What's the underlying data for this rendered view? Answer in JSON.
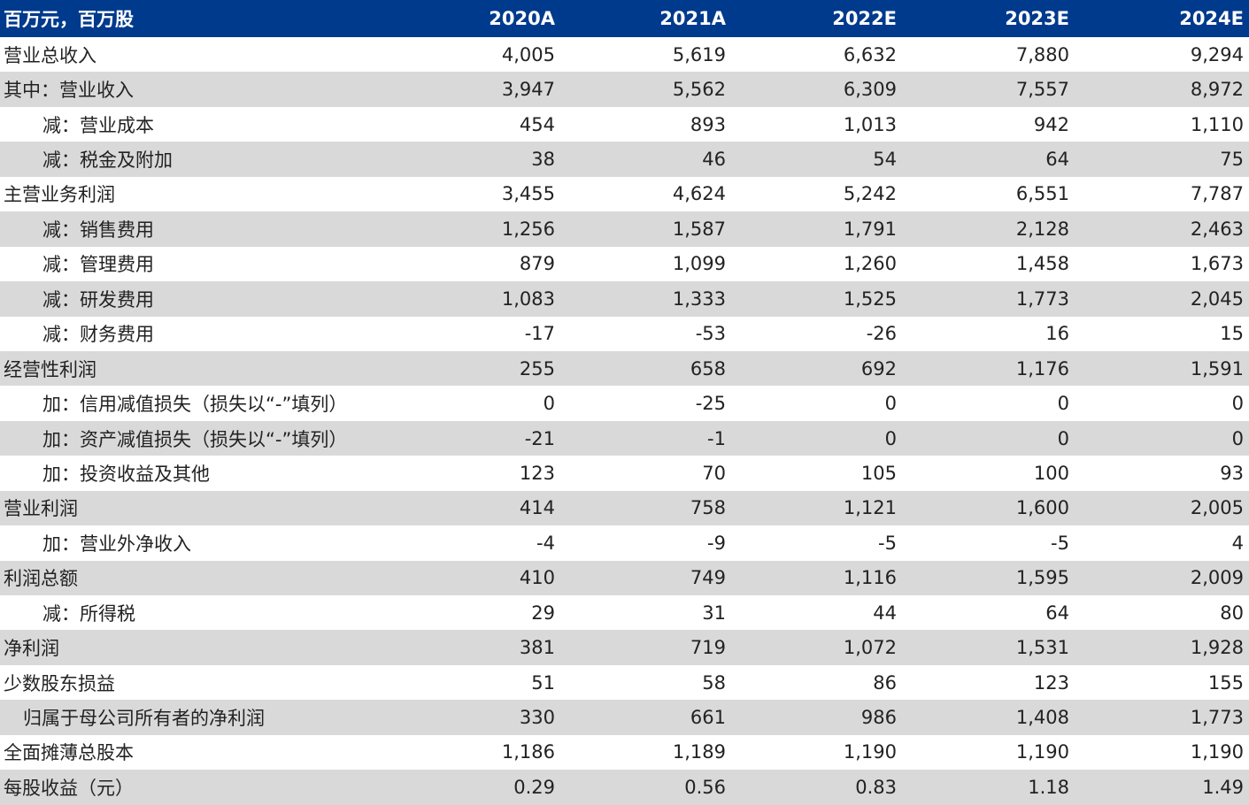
{
  "header": {
    "label": "百万元，百万股",
    "years": [
      "2020A",
      "2021A",
      "2022E",
      "2023E",
      "2024E"
    ]
  },
  "rows": [
    {
      "label": "营业总收入",
      "indent": 0,
      "values": [
        "4,005",
        "5,619",
        "6,632",
        "7,880",
        "9,294"
      ]
    },
    {
      "label": "其中：营业收入",
      "indent": 0,
      "values": [
        "3,947",
        "5,562",
        "6,309",
        "7,557",
        "8,972"
      ]
    },
    {
      "label": "减：营业成本",
      "indent": 1,
      "values": [
        "454",
        "893",
        "1,013",
        "942",
        "1,110"
      ]
    },
    {
      "label": "减：税金及附加",
      "indent": 1,
      "values": [
        "38",
        "46",
        "54",
        "64",
        "75"
      ]
    },
    {
      "label": "主营业务利润",
      "indent": 0,
      "values": [
        "3,455",
        "4,624",
        "5,242",
        "6,551",
        "7,787"
      ]
    },
    {
      "label": "减：销售费用",
      "indent": 1,
      "values": [
        "1,256",
        "1,587",
        "1,791",
        "2,128",
        "2,463"
      ]
    },
    {
      "label": "减：管理费用",
      "indent": 1,
      "values": [
        "879",
        "1,099",
        "1,260",
        "1,458",
        "1,673"
      ]
    },
    {
      "label": "减：研发费用",
      "indent": 1,
      "values": [
        "1,083",
        "1,333",
        "1,525",
        "1,773",
        "2,045"
      ]
    },
    {
      "label": "减：财务费用",
      "indent": 1,
      "values": [
        "-17",
        "-53",
        "-26",
        "16",
        "15"
      ]
    },
    {
      "label": "经营性利润",
      "indent": 0,
      "values": [
        "255",
        "658",
        "692",
        "1,176",
        "1,591"
      ]
    },
    {
      "label": "加：信用减值损失（损失以“-”填列）",
      "indent": 1,
      "values": [
        "0",
        "-25",
        "0",
        "0",
        "0"
      ]
    },
    {
      "label": "加：资产减值损失（损失以“-”填列）",
      "indent": 1,
      "values": [
        "-21",
        "-1",
        "0",
        "0",
        "0"
      ]
    },
    {
      "label": "加：投资收益及其他",
      "indent": 1,
      "values": [
        "123",
        "70",
        "105",
        "100",
        "93"
      ]
    },
    {
      "label": "营业利润",
      "indent": 0,
      "values": [
        "414",
        "758",
        "1,121",
        "1,600",
        "2,005"
      ]
    },
    {
      "label": "加：营业外净收入",
      "indent": 1,
      "values": [
        "-4",
        "-9",
        "-5",
        "-5",
        "4"
      ]
    },
    {
      "label": "利润总额",
      "indent": 0,
      "values": [
        "410",
        "749",
        "1,116",
        "1,595",
        "2,009"
      ]
    },
    {
      "label": "减：所得税",
      "indent": 1,
      "values": [
        "29",
        "31",
        "44",
        "64",
        "80"
      ]
    },
    {
      "label": "净利润",
      "indent": 0,
      "values": [
        "381",
        "719",
        "1,072",
        "1,531",
        "1,928"
      ]
    },
    {
      "label": "少数股东损益",
      "indent": 0,
      "values": [
        "51",
        "58",
        "86",
        "123",
        "155"
      ]
    },
    {
      "label": "归属于母公司所有者的净利润",
      "indent": 2,
      "values": [
        "330",
        "661",
        "986",
        "1,408",
        "1,773"
      ]
    },
    {
      "label": "全面摊薄总股本",
      "indent": 0,
      "values": [
        "1,186",
        "1,189",
        "1,190",
        "1,190",
        "1,190"
      ]
    },
    {
      "label": "每股收益（元）",
      "indent": 0,
      "values": [
        "0.29",
        "0.56",
        "0.83",
        "1.18",
        "1.49"
      ]
    }
  ],
  "colors": {
    "header_bg": "#003a8c",
    "header_text": "#ffffff",
    "shade_row": "#d9d9d9"
  }
}
